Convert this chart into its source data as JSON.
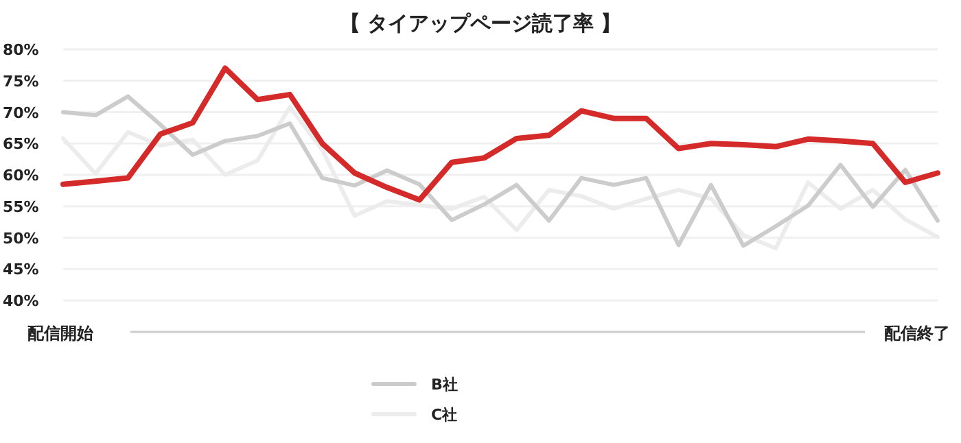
{
  "chart_data": {
    "type": "line",
    "title": "【 タイアップページ読了率 】",
    "categories": [
      null,
      null,
      null,
      null,
      null,
      null,
      null,
      null,
      null,
      null,
      null,
      null,
      null,
      null,
      null,
      null,
      null,
      null,
      null,
      null,
      null,
      null,
      null,
      null,
      null,
      null,
      null,
      null
    ],
    "series": [
      {
        "color": "#d42a2a",
        "values": [
          58.5,
          59,
          59.5,
          66.5,
          68.3,
          77,
          72,
          72.8,
          65,
          60.3,
          58,
          56,
          62,
          62.7,
          65.8,
          66.3,
          70.2,
          69,
          69,
          64.2,
          65,
          64.8,
          64.5,
          65.7,
          65.4,
          65,
          58.8,
          60.3
        ]
      },
      {
        "name": "B社",
        "color": "#cccccc",
        "values": [
          70,
          69.5,
          72.5,
          68,
          63.2,
          65.4,
          66.2,
          68.2,
          59.5,
          58.3,
          60.7,
          58.5,
          52.8,
          55.3,
          58.4,
          52.7,
          59.5,
          58.4,
          59.5,
          48.8,
          58.4,
          48.7,
          51.8,
          55.1,
          61.6,
          54.9,
          60.8,
          52.7
        ]
      },
      {
        "name": "C社",
        "color": "#ececec",
        "values": [
          65.8,
          60.2,
          66.8,
          64.7,
          65.6,
          60,
          62.3,
          70.8,
          64,
          53.5,
          55.8,
          55.2,
          54.6,
          56.5,
          51.2,
          57.6,
          56.6,
          54.6,
          56.2,
          57.6,
          56.2,
          50.4,
          48.3,
          58.8,
          54.6,
          57.6,
          52.9,
          50.1
        ]
      }
    ],
    "ylim": [
      40,
      80
    ],
    "yticks": [
      {
        "value": 40,
        "label": "40%"
      },
      {
        "value": 45,
        "label": "45%"
      },
      {
        "value": 50,
        "label": "50%"
      },
      {
        "value": 55,
        "label": "55%"
      },
      {
        "value": 60,
        "label": "60%"
      },
      {
        "value": 65,
        "label": "65%"
      },
      {
        "value": 70,
        "label": "70%"
      },
      {
        "value": 75,
        "label": "75%"
      },
      {
        "value": 80,
        "label": "80%"
      }
    ],
    "grid": "y",
    "legend": "bottom",
    "marker": "none",
    "line_style": "solid",
    "annotations": [
      "配信開始",
      "配信終了"
    ]
  }
}
